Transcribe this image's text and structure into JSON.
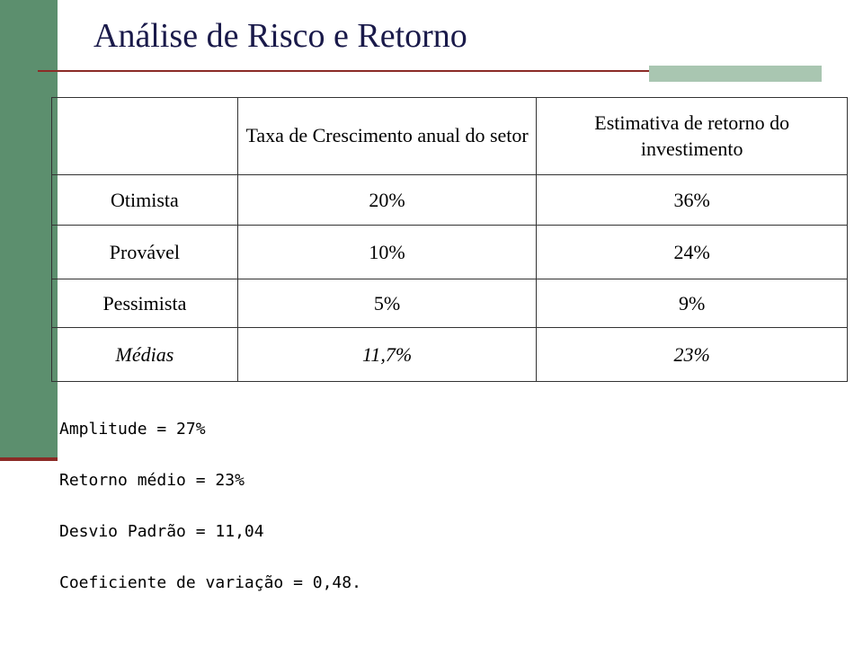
{
  "title": "Análise de Risco e Retorno",
  "table": {
    "headers": [
      "",
      "Taxa de Crescimento anual do setor",
      "Estimativa de retorno do investimento"
    ],
    "rows": [
      {
        "scenario": "Otimista",
        "growth": "20%",
        "return": "36%"
      },
      {
        "scenario": "Provável",
        "growth": "10%",
        "return": "24%"
      },
      {
        "scenario": "Pessimista",
        "growth": "5%",
        "return": "9%"
      },
      {
        "scenario": "Médias",
        "growth": "11,7%",
        "return": "23%"
      }
    ]
  },
  "stats": [
    "Amplitude = 27%",
    "Retorno médio = 23%",
    "Desvio Padrão = 11,04",
    "Coeficiente de variação = 0,48."
  ],
  "colors": {
    "sidebar_green": "#5c8f6e",
    "rule_red": "#8b2b26",
    "accent_green": "#a9c6b1",
    "title_color": "#1a1a4a"
  }
}
